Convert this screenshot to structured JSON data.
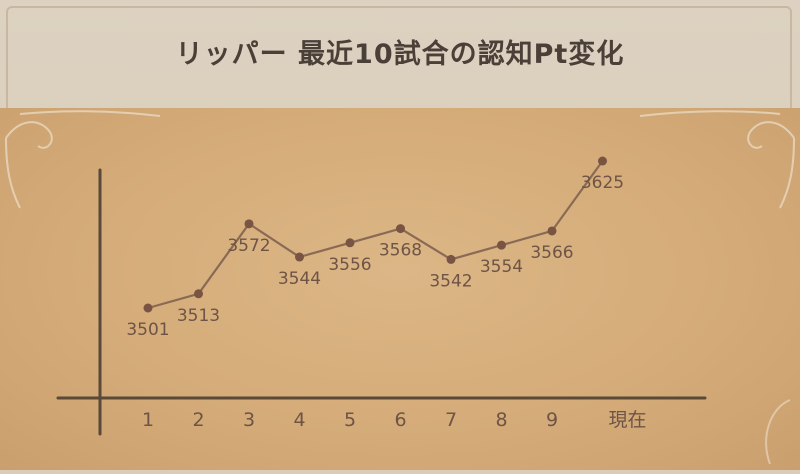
{
  "title": "リッパー 最近10試合の認知Pt変化",
  "chart_data": {
    "type": "line",
    "title": "リッパー 最近10試合の認知Pt変化",
    "categories": [
      "1",
      "2",
      "3",
      "4",
      "5",
      "6",
      "7",
      "8",
      "9",
      "現在"
    ],
    "values": [
      3501,
      3513,
      3572,
      3544,
      3556,
      3568,
      3542,
      3554,
      3566,
      3625
    ],
    "xlabel": "",
    "ylabel": "",
    "grid": false,
    "colors": {
      "line": "#8a6a55",
      "point": "#7a5442",
      "label": "#6e5446",
      "axis": "#5a4838"
    }
  }
}
